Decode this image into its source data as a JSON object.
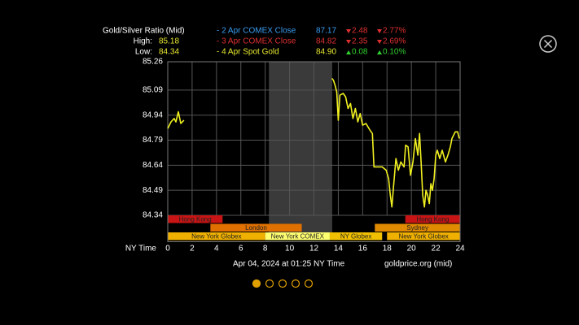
{
  "header": {
    "title": "Gold/Silver Ratio (Mid)",
    "high_label": "High:",
    "high": 85.18,
    "low_label": "Low:",
    "low": 84.34
  },
  "legend_rows": [
    {
      "name": "- 2 Apr COMEX Close",
      "color": "#3a9cf0",
      "price": "87.17",
      "change": "2.48",
      "change_pct": "2.77%",
      "direction": "down"
    },
    {
      "name": "- 3 Apr COMEX Close",
      "color": "#e03030",
      "price": "84.82",
      "change": "2.35",
      "change_pct": "2.69%",
      "direction": "down"
    },
    {
      "name": "- 4 Apr Spot Gold",
      "color": "#e8e830",
      "price": "84.90",
      "change": "0.08",
      "change_pct": "0.10%",
      "direction": "up"
    }
  ],
  "chart_data": {
    "type": "line",
    "x_label": "NY Time",
    "xlim": [
      0,
      24
    ],
    "xticks": [
      0,
      2,
      4,
      6,
      8,
      10,
      12,
      14,
      16,
      18,
      20,
      22,
      24
    ],
    "ylim": [
      84.34,
      85.26
    ],
    "yticks": [
      85.26,
      85.09,
      84.94,
      84.79,
      84.64,
      84.49,
      84.34
    ],
    "grid": true,
    "shade": [
      8.3,
      13.5
    ],
    "shade_color": "#3a3a3a",
    "series": [
      {
        "name": "Gold/Silver Ratio (Mid)",
        "color": "#f0f020",
        "x": [
          0,
          0.27,
          0.53,
          0.67,
          0.87,
          1.07,
          1.33,
          null,
          13.47,
          13.6,
          13.73,
          13.87,
          14.0,
          14.13,
          14.4,
          14.6,
          14.8,
          15.0,
          15.2,
          15.4,
          15.6,
          15.8,
          16.0,
          16.27,
          16.6,
          16.8,
          16.93,
          17.6,
          17.93,
          18.13,
          18.27,
          18.4,
          18.53,
          18.73,
          18.93,
          19.13,
          19.4,
          19.53,
          19.73,
          19.93,
          20.13,
          20.33,
          20.53,
          20.67,
          20.8,
          20.93,
          21.07,
          21.2,
          21.33,
          21.47,
          21.6,
          21.73,
          21.87,
          22.0,
          22.13,
          22.33,
          22.53,
          22.8,
          23.0,
          23.2,
          23.33,
          23.6,
          23.8,
          23.93
        ],
        "values": [
          84.86,
          84.9,
          84.92,
          84.9,
          84.96,
          84.89,
          84.91,
          null,
          85.16,
          85.15,
          85.12,
          85.08,
          84.91,
          85.06,
          85.07,
          85.05,
          84.98,
          85.01,
          84.92,
          84.98,
          84.9,
          84.95,
          84.88,
          84.89,
          84.85,
          84.83,
          84.63,
          84.63,
          84.61,
          84.56,
          84.46,
          84.39,
          84.51,
          84.68,
          84.61,
          84.66,
          84.63,
          84.76,
          84.75,
          84.58,
          84.66,
          84.8,
          84.7,
          84.83,
          84.66,
          84.46,
          84.39,
          84.49,
          84.46,
          84.41,
          84.53,
          84.49,
          84.56,
          84.7,
          84.73,
          84.68,
          84.73,
          84.66,
          84.7,
          84.75,
          84.8,
          84.84,
          84.84,
          84.8
        ]
      }
    ],
    "sessions": [
      {
        "name": "Hong Kong",
        "start": 0,
        "end": 4.5,
        "row": 0,
        "color": "#c81414"
      },
      {
        "name": "Hong Kong",
        "start": 19.5,
        "end": 24,
        "row": 0,
        "color": "#c81414"
      },
      {
        "name": "London",
        "start": 3.5,
        "end": 11,
        "row": 1,
        "color": "#e07000"
      },
      {
        "name": "Sydney",
        "start": 17,
        "end": 24,
        "row": 1,
        "color": "#e08a00"
      },
      {
        "name": "New York Globex",
        "start": 0,
        "end": 8,
        "row": 2,
        "color": "#f0b000"
      },
      {
        "name": "New York COMEX",
        "start": 8,
        "end": 13.3,
        "row": 2,
        "color": "#ffff70"
      },
      {
        "name": "NY Globex",
        "start": 13.3,
        "end": 17.6,
        "row": 2,
        "color": "#f0c000"
      },
      {
        "name": "New York Globex",
        "start": 18,
        "end": 24,
        "row": 2,
        "color": "#f0b000"
      }
    ]
  },
  "footer": {
    "timestamp": "Apr 04, 2024 at 01:25 NY Time",
    "source": "goldprice.org (mid)"
  },
  "pagination": {
    "pages": 5,
    "current": 0
  }
}
